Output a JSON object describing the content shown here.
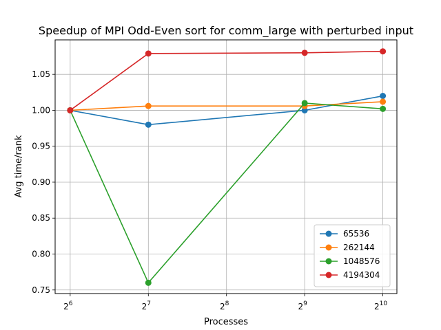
{
  "chart_data": {
    "type": "line",
    "title": "Speedup of MPI Odd-Even sort for comm_large with perturbed input",
    "xlabel": "Processes",
    "ylabel": "Avg time/rank",
    "x_scale": "log2",
    "x": [
      64,
      128,
      512,
      1024
    ],
    "x_ticks": [
      {
        "base": "2",
        "exp": "6",
        "value": 64
      },
      {
        "base": "2",
        "exp": "7",
        "value": 128
      },
      {
        "base": "2",
        "exp": "8",
        "value": 256
      },
      {
        "base": "2",
        "exp": "9",
        "value": 512
      },
      {
        "base": "2",
        "exp": "10",
        "value": 1024
      }
    ],
    "xlim": [
      56,
      1160
    ],
    "y_ticks": [
      "0.75",
      "0.80",
      "0.85",
      "0.90",
      "0.95",
      "1.00",
      "1.05"
    ],
    "ylim": [
      0.745,
      1.098
    ],
    "grid": true,
    "legend_position": "lower-right",
    "series": [
      {
        "name": "65536",
        "color": "#1f77b4",
        "values": [
          1.0,
          0.98,
          1.0,
          1.02
        ]
      },
      {
        "name": "262144",
        "color": "#ff7f0e",
        "values": [
          1.0,
          1.006,
          1.006,
          1.012
        ]
      },
      {
        "name": "1048576",
        "color": "#2ca02c",
        "values": [
          1.0,
          0.76,
          1.01,
          1.002
        ]
      },
      {
        "name": "4194304",
        "color": "#d62728",
        "values": [
          1.0,
          1.079,
          1.08,
          1.082
        ]
      }
    ]
  }
}
